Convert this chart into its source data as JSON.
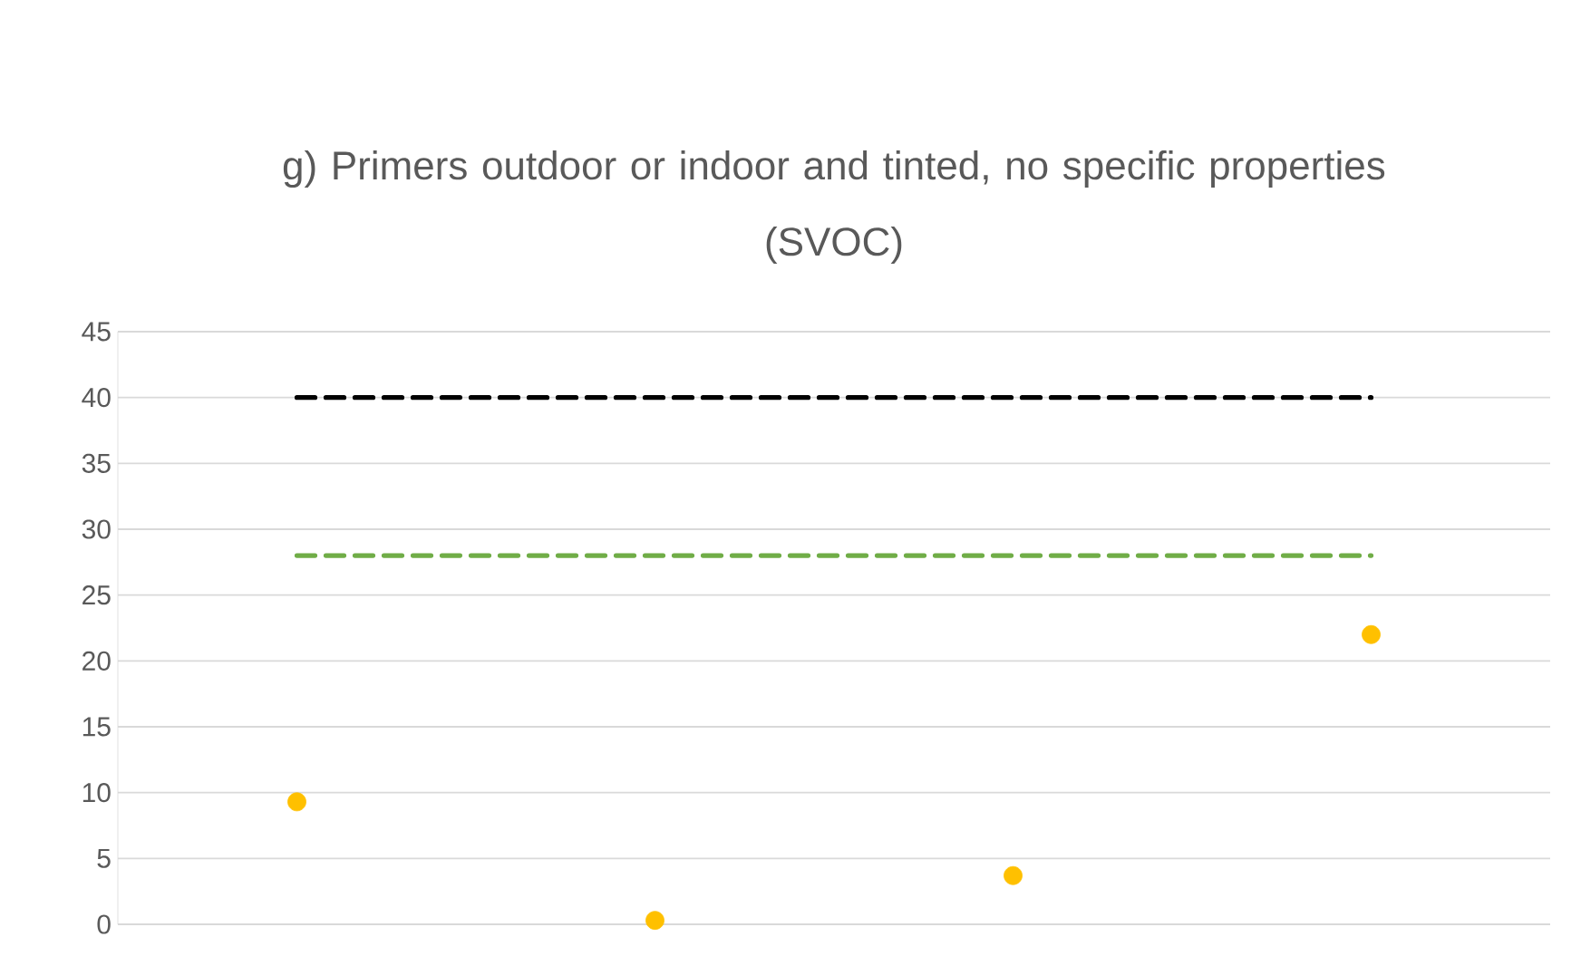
{
  "chart_data": {
    "type": "scatter",
    "title": "g) Primers outdoor or indoor and tinted, no specific properties",
    "subtitle": "(SVOC)",
    "categories": [
      null,
      null,
      null,
      null
    ],
    "series": [
      {
        "type": "line",
        "color": "#000000",
        "values": [
          40,
          40,
          40,
          40
        ],
        "line_style": "dashed",
        "marker": "none"
      },
      {
        "type": "line",
        "color": "#70ad47",
        "values": [
          28,
          28,
          28,
          28
        ],
        "line_style": "dashed",
        "marker": "none"
      },
      {
        "type": "scatter",
        "color": "#ffc000",
        "values": [
          9.3,
          0.3,
          3.7,
          22.0
        ],
        "marker": "circle"
      }
    ],
    "ylim": [
      0,
      45
    ],
    "yticks": [
      0,
      5,
      10,
      15,
      20,
      25,
      30,
      35,
      40,
      45
    ],
    "grid": "y",
    "legend": false,
    "tick_labels": "y"
  }
}
